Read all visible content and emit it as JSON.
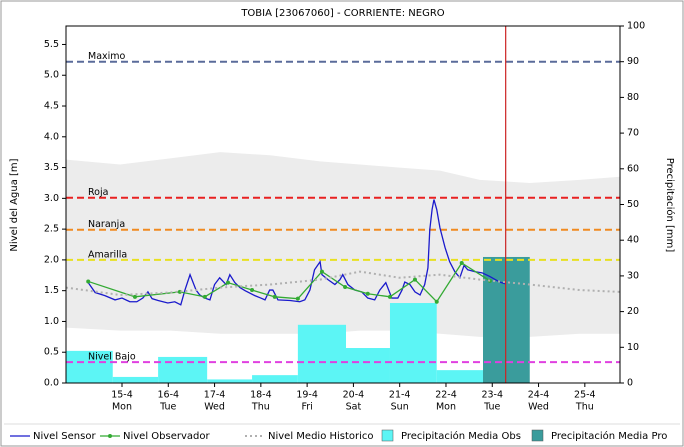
{
  "chart_data": {
    "type": "line",
    "title": "TOBIA [23067060] - CORRIENTE: NEGRO",
    "y_label": "Nivel del Agua [m]",
    "y2_label": "Precipitación [mm]",
    "xlim": [
      13.79,
      25.76
    ],
    "xticks": [
      {
        "value": 15,
        "label": "15-4"
      },
      {
        "value": 16,
        "label": "16-4"
      },
      {
        "value": 17,
        "label": "17-4"
      },
      {
        "value": 18,
        "label": "18-4"
      },
      {
        "value": 19,
        "label": "19-4"
      },
      {
        "value": 20,
        "label": "20-4"
      },
      {
        "value": 21,
        "label": "21-4"
      },
      {
        "value": 22,
        "label": "22-4"
      },
      {
        "value": 23,
        "label": "23-4"
      },
      {
        "value": 24,
        "label": "24-4"
      },
      {
        "value": 25,
        "label": "25-4"
      }
    ],
    "xtick_days": [
      "Mon",
      "Tue",
      "Wed",
      "Thu",
      "Fri",
      "Sat",
      "Sun",
      "Mon",
      "Tue",
      "Wed",
      "Thu"
    ],
    "ylim": [
      0,
      5.8
    ],
    "yticks": [
      {
        "value": 0,
        "label": "0.0"
      },
      0.5,
      {
        "value": 1,
        "label": "1.0"
      },
      1.5,
      {
        "value": 2,
        "label": "2.0"
      },
      2.5,
      {
        "value": 3,
        "label": "3.0"
      },
      3.5,
      {
        "value": 4,
        "label": "4.0"
      },
      4.5,
      {
        "value": 5,
        "label": "5.0"
      },
      5.5
    ],
    "y2lim": [
      0,
      100
    ],
    "y2ticks": [
      0,
      10,
      20,
      30,
      40,
      50,
      60,
      70,
      80,
      90,
      100
    ],
    "band": {
      "color": "#ececec",
      "x": [
        13.79,
        14.96,
        16.04,
        17.12,
        18.2,
        19.28,
        20.14,
        21.0,
        21.87,
        22.73,
        23.81,
        24.89,
        25.76
      ],
      "upper": [
        3.63,
        3.55,
        3.65,
        3.75,
        3.7,
        3.6,
        3.55,
        3.5,
        3.45,
        3.3,
        3.25,
        3.3,
        3.35
      ],
      "lower": [
        0.9,
        0.85,
        0.85,
        0.8,
        0.8,
        0.8,
        0.85,
        0.85,
        0.8,
        0.75,
        0.75,
        0.8,
        0.8
      ]
    },
    "reference_lines": [
      {
        "label": "Maximo",
        "value": 5.22,
        "color": "#5a6b9a"
      },
      {
        "label": "Roja",
        "value": 3.01,
        "color": "#e82020"
      },
      {
        "label": "Naranja",
        "value": 2.49,
        "color": "#f08a20"
      },
      {
        "label": "Amarilla",
        "value": 2.0,
        "color": "#e8e020"
      },
      {
        "label": "Nivel Bajo",
        "value": 0.34,
        "color": "#e040e0"
      }
    ],
    "vline": {
      "value": 23.29,
      "color": "#cc2222"
    },
    "series": [
      {
        "name": "Nivel Sensor",
        "type": "line",
        "color": "#1a1acc",
        "x": [
          14.27,
          14.42,
          14.63,
          14.85,
          15.0,
          15.17,
          15.32,
          15.45,
          15.56,
          15.65,
          15.78,
          15.99,
          16.14,
          16.27,
          16.36,
          16.47,
          16.6,
          16.68,
          16.79,
          16.9,
          17.0,
          17.11,
          17.25,
          17.33,
          17.44,
          17.55,
          17.66,
          17.87,
          18.0,
          18.09,
          18.19,
          18.26,
          18.37,
          18.63,
          18.84,
          18.95,
          19.06,
          19.16,
          19.28,
          19.32,
          19.45,
          19.6,
          19.71,
          19.77,
          19.88,
          20.03,
          20.18,
          20.31,
          20.46,
          20.57,
          20.7,
          20.83,
          20.96,
          21.05,
          21.11,
          21.22,
          21.33,
          21.44,
          21.54,
          21.61,
          21.65,
          21.7,
          21.74,
          21.8,
          21.87,
          21.98,
          22.08,
          22.19,
          22.3,
          22.39,
          22.47,
          22.62,
          22.78,
          22.95,
          23.16,
          23.29
        ],
        "values": [
          1.63,
          1.47,
          1.42,
          1.35,
          1.38,
          1.32,
          1.32,
          1.38,
          1.48,
          1.37,
          1.34,
          1.3,
          1.32,
          1.27,
          1.51,
          1.76,
          1.51,
          1.43,
          1.38,
          1.35,
          1.6,
          1.71,
          1.6,
          1.76,
          1.63,
          1.55,
          1.5,
          1.42,
          1.38,
          1.35,
          1.51,
          1.51,
          1.35,
          1.34,
          1.32,
          1.35,
          1.51,
          1.84,
          1.97,
          1.76,
          1.68,
          1.6,
          1.68,
          1.76,
          1.6,
          1.51,
          1.48,
          1.38,
          1.35,
          1.51,
          1.63,
          1.38,
          1.38,
          1.51,
          1.64,
          1.6,
          1.48,
          1.43,
          1.6,
          1.87,
          2.49,
          2.82,
          2.98,
          2.82,
          2.52,
          2.2,
          1.97,
          1.81,
          1.71,
          1.91,
          1.84,
          1.81,
          1.79,
          1.73,
          1.64,
          1.61
        ]
      },
      {
        "name": "Nivel Observador",
        "type": "line",
        "color": "#33aa33",
        "markers": true,
        "x": [
          14.27,
          15.28,
          16.25,
          16.79,
          17.29,
          17.81,
          18.3,
          18.8,
          19.32,
          19.82,
          20.31,
          20.79,
          21.33,
          21.8,
          22.34,
          22.95
        ],
        "values": [
          1.65,
          1.4,
          1.48,
          1.4,
          1.63,
          1.51,
          1.4,
          1.37,
          1.81,
          1.56,
          1.45,
          1.4,
          1.68,
          1.32,
          1.95,
          1.66
        ]
      },
      {
        "name": "Nivel Medio Historico",
        "type": "line",
        "color": "#b0b0b0",
        "dash": "dotted",
        "x": [
          13.79,
          14.96,
          16.04,
          17.12,
          18.2,
          19.28,
          20.14,
          21.0,
          21.87,
          22.73,
          23.81,
          24.89,
          25.76
        ],
        "values": [
          1.55,
          1.43,
          1.47,
          1.55,
          1.6,
          1.68,
          1.81,
          1.71,
          1.76,
          1.68,
          1.6,
          1.51,
          1.48
        ]
      },
      {
        "name": "Precipitación Media Obs",
        "type": "bar",
        "axis": "y2",
        "color": "#5cf5f5",
        "bins": [
          13.79,
          14.8,
          15.78,
          16.84,
          17.81,
          18.8,
          19.84,
          20.79,
          21.8,
          22.8
        ],
        "values": [
          9,
          1.7,
          7.3,
          1,
          2.2,
          16.3,
          9.8,
          22.4,
          3.6
        ]
      },
      {
        "name": "Precipitación Media Pro",
        "type": "bar",
        "axis": "y2",
        "color": "#3a9c9c",
        "bins": [
          22.8,
          23.81
        ],
        "values": [
          35.3
        ]
      }
    ]
  }
}
